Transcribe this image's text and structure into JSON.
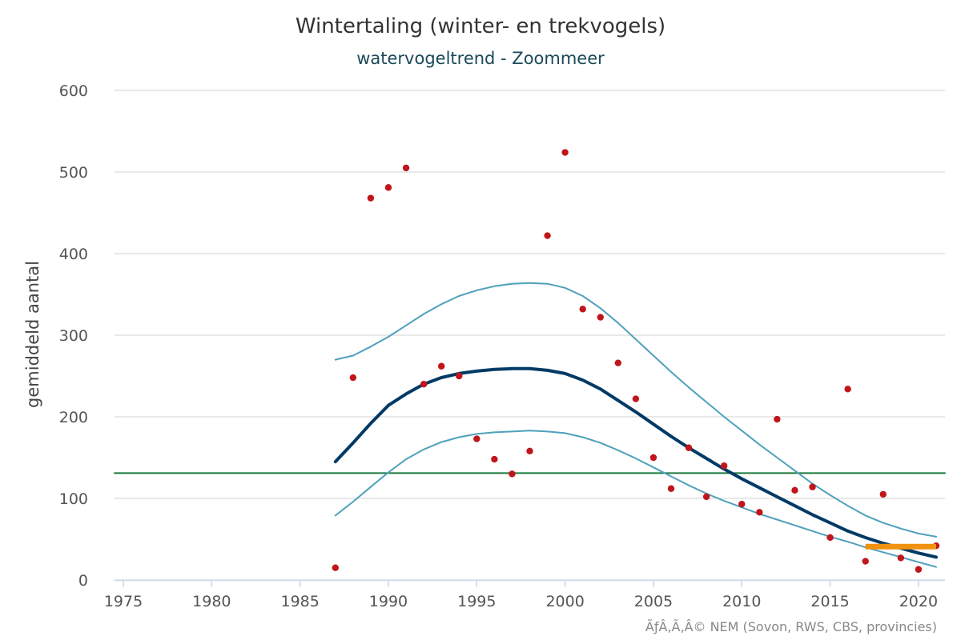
{
  "chart_data": {
    "type": "line",
    "title": "Wintertaling (winter- en trekvogels)",
    "subtitle": "watervogeltrend - Zoommeer",
    "ylabel": "gemiddeld aantal",
    "xlim": [
      1974.5,
      2021.5
    ],
    "ylim": [
      0,
      600
    ],
    "x_ticks": [
      1975,
      1980,
      1985,
      1990,
      1995,
      2000,
      2005,
      2010,
      2015,
      2020
    ],
    "y_ticks": [
      0,
      100,
      200,
      300,
      400,
      500,
      600
    ],
    "grid": true,
    "colors": {
      "points": "#c0151b",
      "trend": "#003a66",
      "band": "#4fa1bb",
      "reference": "#1a7a3c",
      "recent": "#f0920f"
    },
    "series": [
      {
        "kind": "scatter",
        "x": [
          1987,
          1988,
          1989,
          1990,
          1991,
          1992,
          1993,
          1994,
          1995,
          1996,
          1997,
          1998,
          1999,
          2000,
          2001,
          2002,
          2003,
          2004,
          2005,
          2006,
          2007,
          2008,
          2009,
          2010,
          2011,
          2012,
          2013,
          2014,
          2015,
          2016,
          2017,
          2018,
          2019,
          2020,
          2021
        ],
        "y": [
          15,
          248,
          468,
          481,
          505,
          240,
          262,
          250,
          173,
          148,
          130,
          158,
          422,
          524,
          332,
          322,
          266,
          222,
          150,
          112,
          162,
          102,
          140,
          93,
          83,
          197,
          110,
          114,
          52,
          234,
          23,
          105,
          27,
          13,
          42
        ]
      },
      {
        "kind": "trend",
        "x": [
          1987,
          1988,
          1989,
          1990,
          1991,
          1992,
          1993,
          1994,
          1995,
          1996,
          1997,
          1998,
          1999,
          2000,
          2001,
          2002,
          2003,
          2004,
          2005,
          2006,
          2007,
          2008,
          2009,
          2010,
          2011,
          2012,
          2013,
          2014,
          2015,
          2016,
          2017,
          2018,
          2019,
          2020,
          2021
        ],
        "y": [
          145,
          168,
          192,
          214,
          228,
          240,
          248,
          253,
          256,
          258,
          259,
          259,
          257,
          253,
          245,
          234,
          220,
          206,
          191,
          176,
          162,
          149,
          136,
          124,
          113,
          102,
          91,
          80,
          70,
          60,
          52,
          45,
          39,
          33,
          28
        ]
      },
      {
        "kind": "upper",
        "x": [
          1987,
          1988,
          1989,
          1990,
          1991,
          1992,
          1993,
          1994,
          1995,
          1996,
          1997,
          1998,
          1999,
          2000,
          2001,
          2002,
          2003,
          2004,
          2005,
          2006,
          2007,
          2008,
          2009,
          2010,
          2011,
          2012,
          2013,
          2014,
          2015,
          2016,
          2017,
          2018,
          2019,
          2020,
          2021
        ],
        "y": [
          270,
          275,
          286,
          298,
          312,
          326,
          338,
          348,
          355,
          360,
          363,
          364,
          363,
          358,
          348,
          333,
          315,
          295,
          275,
          255,
          236,
          218,
          200,
          183,
          166,
          150,
          134,
          118,
          104,
          91,
          79,
          70,
          63,
          57,
          53
        ]
      },
      {
        "kind": "lower",
        "x": [
          1987,
          1988,
          1989,
          1990,
          1991,
          1992,
          1993,
          1994,
          1995,
          1996,
          1997,
          1998,
          1999,
          2000,
          2001,
          2002,
          2003,
          2004,
          2005,
          2006,
          2007,
          2008,
          2009,
          2010,
          2011,
          2012,
          2013,
          2014,
          2015,
          2016,
          2017,
          2018,
          2019,
          2020,
          2021
        ],
        "y": [
          79,
          96,
          114,
          132,
          148,
          160,
          169,
          175,
          179,
          181,
          182,
          183,
          182,
          180,
          175,
          168,
          159,
          149,
          138,
          127,
          116,
          106,
          97,
          89,
          81,
          74,
          67,
          60,
          53,
          47,
          40,
          34,
          28,
          22,
          16
        ]
      },
      {
        "kind": "reference",
        "x": [
          1974.5,
          2021.5
        ],
        "y": [
          131,
          131
        ]
      },
      {
        "kind": "recent",
        "x": [
          2017,
          2021
        ],
        "y": [
          41,
          41
        ]
      }
    ],
    "credit": "ÃƒÂ‚Ã‚Â© NEM (Sovon, RWS, CBS, provincies)"
  }
}
